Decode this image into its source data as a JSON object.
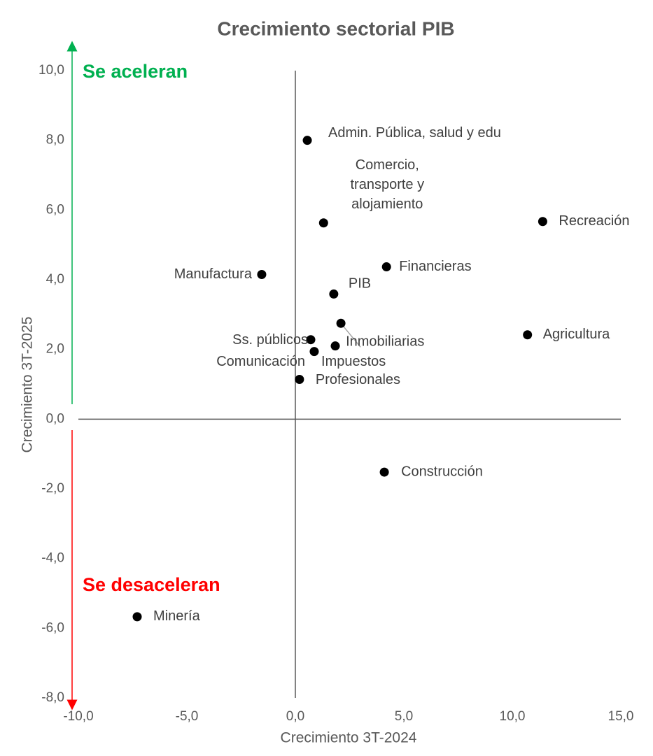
{
  "chart_data": {
    "type": "scatter",
    "title": "Crecimiento sectorial PIB",
    "x_label": "Crecimiento 3T-2024",
    "y_label": "Crecimiento 3T-2025",
    "annotations": [
      {
        "text": "Se aceleran",
        "color": "#00b050"
      },
      {
        "text": "Se desaceleran",
        "color": "#ff0000"
      }
    ],
    "color": "#000000",
    "labels": [
      "Admin. Pública, salud y edu",
      [
        "Comercio,",
        "transporte y",
        "alojamiento"
      ],
      "Recreación",
      "Manufactura",
      "Financieras",
      "PIB",
      "Inmobiliarias",
      "Agricultura",
      "Ss. públicos",
      "Impuestos",
      "Comunicación",
      "Profesionales",
      "Construcción",
      "Minería"
    ],
    "x": [
      0.55,
      1.3,
      11.4,
      -1.55,
      4.2,
      1.77,
      2.1,
      10.7,
      0.71,
      1.84,
      0.87,
      0.19,
      4.1,
      -7.29
    ],
    "values": [
      8.0,
      5.63,
      5.67,
      4.15,
      4.37,
      3.59,
      2.75,
      2.42,
      2.28,
      2.1,
      1.94,
      1.14,
      -1.52,
      -5.67
    ],
    "xlim": [
      -10,
      15
    ],
    "ylim": [
      -8,
      10
    ],
    "xticks": [
      {
        "value": -10,
        "label": "-10,0"
      },
      {
        "value": -5,
        "label": "-5,0"
      },
      {
        "value": 0,
        "label": "0,0"
      },
      {
        "value": 5,
        "label": "5,0"
      },
      {
        "value": 10,
        "label": "10,0"
      },
      {
        "value": 15,
        "label": "15,0"
      }
    ],
    "yticks": [
      {
        "value": -8,
        "label": "-8,0"
      },
      {
        "value": -6,
        "label": "-6,0"
      },
      {
        "value": -4,
        "label": "-4,0"
      },
      {
        "value": -2,
        "label": "-2,0"
      },
      {
        "value": 0,
        "label": "0,0"
      },
      {
        "value": 2,
        "label": "2,0"
      },
      {
        "value": 4,
        "label": "4,0"
      },
      {
        "value": 6,
        "label": "6,0"
      },
      {
        "value": 8,
        "label": "8,0"
      },
      {
        "value": 10,
        "label": "10,0"
      }
    ]
  }
}
